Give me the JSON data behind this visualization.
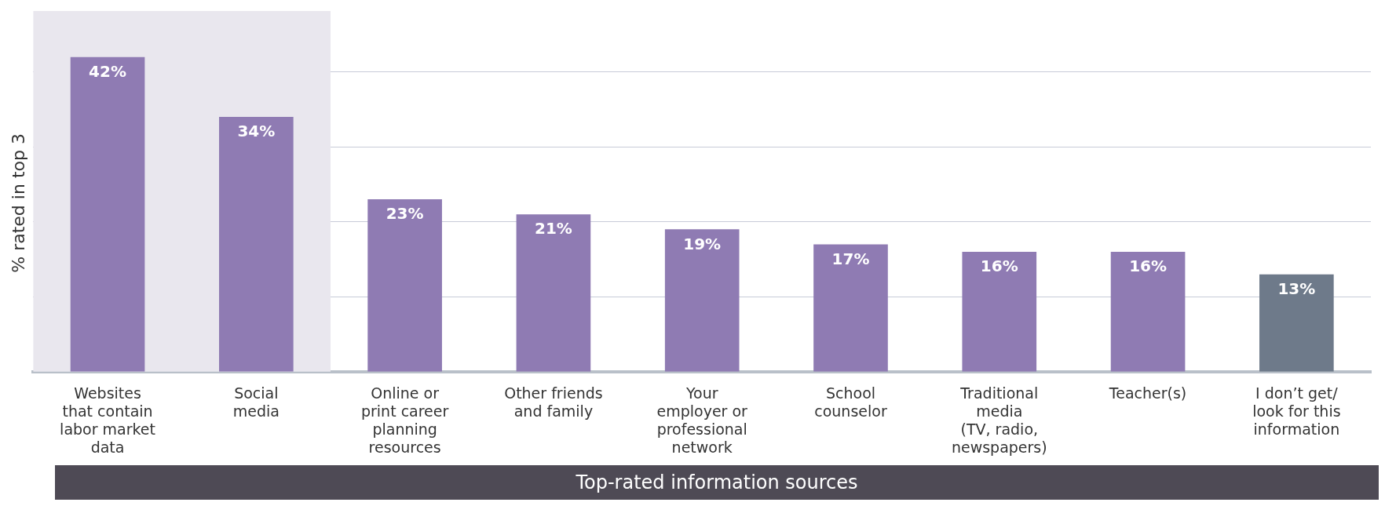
{
  "chart_data": {
    "type": "bar",
    "ylabel": "% rated in top 3",
    "xlabel": "Top-rated information sources",
    "categories": [
      "Websites\nthat contain\nlabor market\ndata",
      "Social\nmedia",
      "Online or\nprint career\nplanning\nresources",
      "Other friends\nand family",
      "Your\nemployer or\nprofessional\nnetwork",
      "School\ncounselor",
      "Traditional\nmedia\n(TV, radio,\nnewspapers)",
      "Teacher(s)",
      "I don’t get/\nlook for this\ninformation"
    ],
    "values": [
      42,
      34,
      23,
      21,
      19,
      17,
      16,
      16,
      13
    ],
    "colors": [
      "#8f7bb3",
      "#8f7bb3",
      "#8f7bb3",
      "#8f7bb3",
      "#8f7bb3",
      "#8f7bb3",
      "#8f7bb3",
      "#8f7bb3",
      "#6e7a8a"
    ],
    "value_labels": [
      "42%",
      "34%",
      "23%",
      "21%",
      "19%",
      "17%",
      "16%",
      "16%",
      "13%"
    ],
    "yticks": [
      {
        "value": 10,
        "label": null
      },
      {
        "value": 20,
        "label": null
      },
      {
        "value": 30,
        "label": null
      },
      {
        "value": 40,
        "label": null
      }
    ],
    "grid": "y",
    "tick_labels": "x",
    "legend": false,
    "bands": [
      {
        "axis": "x",
        "from": "Websites\nthat contain\nlabor market\ndata",
        "to": "Social\nmedia",
        "color": "#e9e7ee"
      }
    ]
  }
}
